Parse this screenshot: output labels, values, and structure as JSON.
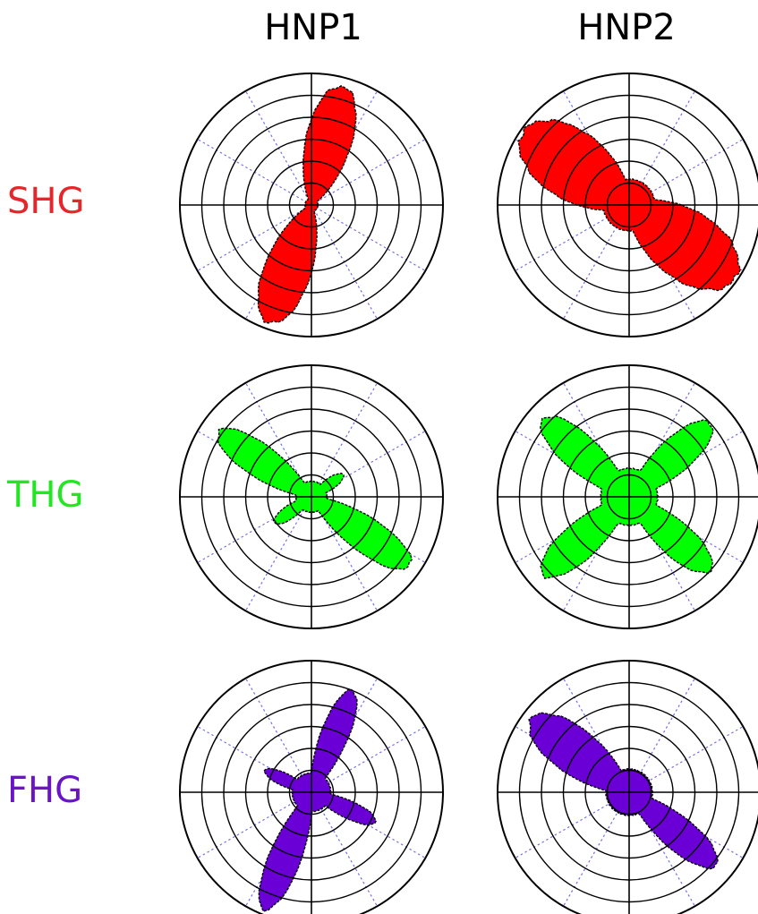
{
  "chart_data": {
    "type": "polar",
    "grid": true,
    "columns": [
      "HNP1",
      "HNP2"
    ],
    "rows": [
      {
        "label": "SHG",
        "color": "#ff0000"
      },
      {
        "label": "THG",
        "color": "#00ff00"
      },
      {
        "label": "FHG",
        "color": "#6a00d6"
      }
    ],
    "panels": [
      {
        "row": "SHG",
        "column": "HNP1",
        "color": "#ff0000",
        "lobes": [
          {
            "angle_deg": 75,
            "length": 0.95,
            "width_deg": 18
          },
          {
            "angle_deg": 250,
            "length": 0.97,
            "width_deg": 18
          }
        ],
        "core": 0.05
      },
      {
        "row": "SHG",
        "column": "HNP2",
        "color": "#ff0000",
        "lobes": [
          {
            "angle_deg": 145,
            "length": 1.0,
            "width_deg": 26
          },
          {
            "angle_deg": 325,
            "length": 1.0,
            "width_deg": 26
          }
        ],
        "core": 0.2
      },
      {
        "row": "THG",
        "column": "HNP1",
        "color": "#00ff00",
        "lobes": [
          {
            "angle_deg": 145,
            "length": 0.88,
            "width_deg": 14
          },
          {
            "angle_deg": 325,
            "length": 0.93,
            "width_deg": 14
          },
          {
            "angle_deg": 35,
            "length": 0.3,
            "width_deg": 14
          },
          {
            "angle_deg": 215,
            "length": 0.35,
            "width_deg": 14
          }
        ],
        "core": 0.12
      },
      {
        "row": "THG",
        "column": "HNP2",
        "color": "#00ff00",
        "lobes": [
          {
            "angle_deg": 42,
            "length": 0.85,
            "width_deg": 15
          },
          {
            "angle_deg": 138,
            "length": 0.9,
            "width_deg": 15
          },
          {
            "angle_deg": 222,
            "length": 0.9,
            "width_deg": 15
          },
          {
            "angle_deg": 318,
            "length": 0.85,
            "width_deg": 15
          }
        ],
        "core": 0.22
      },
      {
        "row": "FHG",
        "column": "HNP1",
        "color": "#6a00d6",
        "lobes": [
          {
            "angle_deg": 68,
            "length": 0.85,
            "width_deg": 12
          },
          {
            "angle_deg": 248,
            "length": 0.98,
            "width_deg": 12
          },
          {
            "angle_deg": 155,
            "length": 0.4,
            "width_deg": 12
          },
          {
            "angle_deg": 335,
            "length": 0.55,
            "width_deg": 12
          }
        ],
        "core": 0.15
      },
      {
        "row": "FHG",
        "column": "HNP2",
        "color": "#6a00d6",
        "lobes": [
          {
            "angle_deg": 143,
            "length": 0.95,
            "width_deg": 18
          },
          {
            "angle_deg": 320,
            "length": 0.88,
            "width_deg": 14
          }
        ],
        "core": 0.18
      }
    ]
  }
}
